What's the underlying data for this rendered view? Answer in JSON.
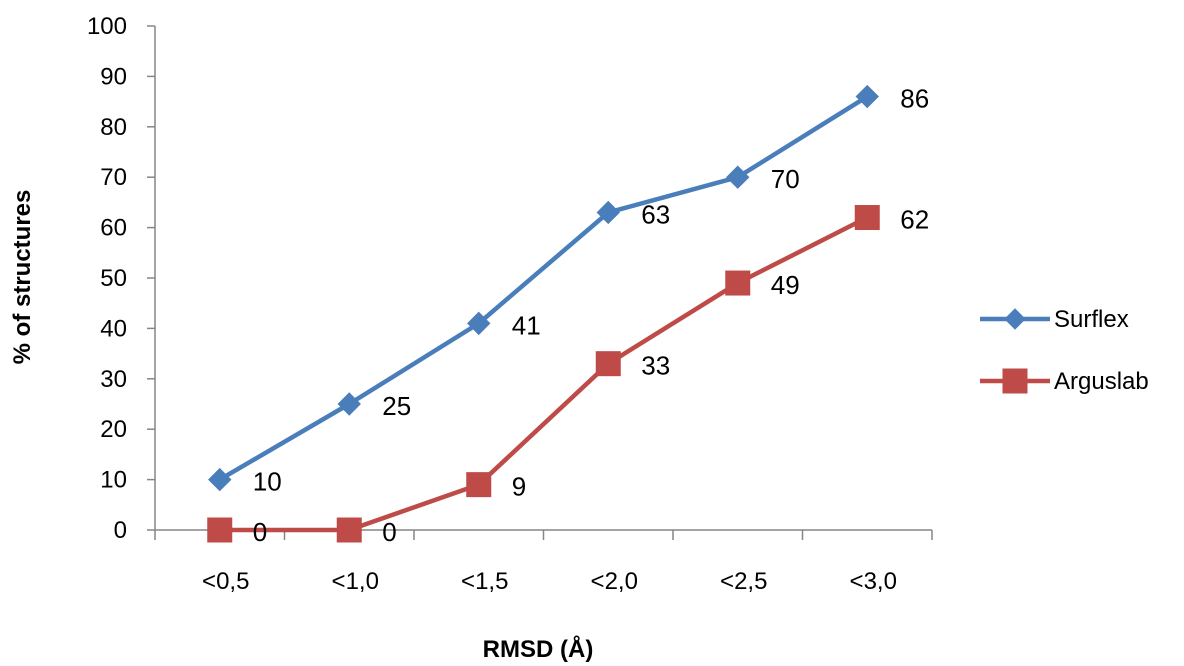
{
  "chart_data": {
    "type": "line",
    "categories": [
      "<0,5",
      "<1,0",
      "<1,5",
      "<2,0",
      "<2,5",
      "<3,0"
    ],
    "series": [
      {
        "name": "Surflex",
        "values": [
          10,
          25,
          41,
          63,
          70,
          86
        ],
        "color": "#4A7EBB",
        "marker": "diamond"
      },
      {
        "name": "Arguslab",
        "values": [
          0,
          0,
          9,
          33,
          49,
          62
        ],
        "color": "#BE4B48",
        "marker": "square"
      }
    ],
    "data_labels": true,
    "xlabel": "RMSD (Å)",
    "ylabel": "% of structures",
    "ylim": [
      0,
      100
    ],
    "ytick_step": 10,
    "grid": false,
    "legend_position": "right"
  }
}
